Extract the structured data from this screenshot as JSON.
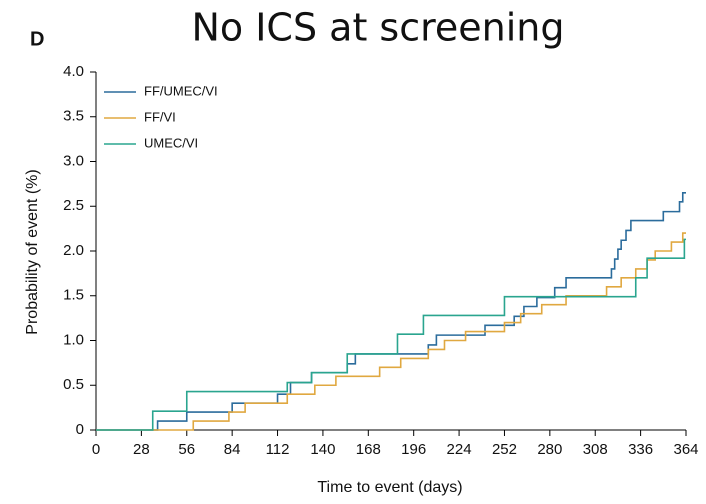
{
  "chart_data": {
    "type": "step",
    "panel": "D",
    "title": "No ICS at screening",
    "x_label": "Time to event (days)",
    "y_label": "Probability of event (%)",
    "xlim": [
      0,
      364
    ],
    "xticks": [
      0,
      28,
      56,
      84,
      112,
      140,
      168,
      196,
      224,
      252,
      280,
      308,
      336,
      364
    ],
    "ylim": [
      0,
      4
    ],
    "yticks": [
      0,
      0.5,
      {
        "value": 1,
        "label": "1.0"
      },
      1.5,
      {
        "value": 2,
        "label": "2.0"
      },
      2.5,
      {
        "value": 3,
        "label": "3.0"
      },
      3.5,
      {
        "value": 4,
        "label": "4.0"
      }
    ],
    "legend": "upper left",
    "series": [
      {
        "name": "FF/UMEC/VI",
        "color": "#2b6c9c",
        "x": [
          0,
          38,
          56,
          84,
          112,
          120,
          133,
          155,
          160,
          205,
          210,
          240,
          258,
          264,
          272,
          283,
          290,
          318,
          320,
          322,
          324,
          327,
          330,
          350,
          360,
          362,
          364
        ],
        "values": [
          0,
          0.1,
          0.2,
          0.3,
          0.4,
          0.53,
          0.64,
          0.74,
          0.85,
          0.95,
          1.06,
          1.17,
          1.27,
          1.38,
          1.48,
          1.59,
          1.7,
          1.8,
          1.91,
          2.02,
          2.12,
          2.23,
          2.34,
          2.44,
          2.55,
          2.65,
          2.65
        ]
      },
      {
        "name": "FF/VI",
        "color": "#e0a840",
        "x": [
          0,
          60,
          82,
          92,
          118,
          135,
          148,
          175,
          188,
          205,
          215,
          228,
          252,
          262,
          275,
          290,
          315,
          324,
          333,
          340,
          345,
          355,
          362,
          364
        ],
        "values": [
          0,
          0.1,
          0.2,
          0.3,
          0.4,
          0.5,
          0.6,
          0.7,
          0.8,
          0.9,
          1.0,
          1.1,
          1.2,
          1.3,
          1.4,
          1.5,
          1.6,
          1.7,
          1.8,
          1.9,
          2.0,
          2.1,
          2.2,
          2.2
        ]
      },
      {
        "name": "UMEC/VI",
        "color": "#2aa58f",
        "x": [
          0,
          35,
          56,
          118,
          133,
          155,
          186,
          202,
          252,
          333,
          340,
          363,
          364
        ],
        "values": [
          0,
          0.21,
          0.43,
          0.53,
          0.64,
          0.85,
          1.07,
          1.28,
          1.49,
          1.7,
          1.92,
          2.13,
          2.13
        ]
      }
    ]
  }
}
